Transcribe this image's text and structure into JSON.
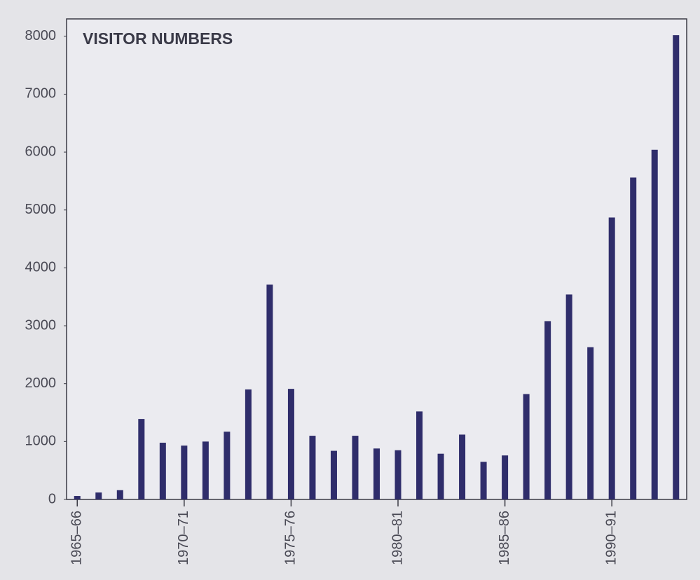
{
  "chart_data": {
    "type": "bar",
    "title": "VISITOR NUMBERS",
    "categories": [
      "1965–66",
      null,
      null,
      null,
      null,
      "1970–71",
      null,
      null,
      null,
      null,
      "1975–76",
      null,
      null,
      null,
      null,
      "1980–81",
      null,
      null,
      null,
      null,
      "1985–86",
      null,
      null,
      null,
      null,
      "1990–91",
      null,
      null,
      null
    ],
    "values": [
      60,
      120,
      160,
      1390,
      980,
      930,
      1000,
      1170,
      1900,
      3710,
      1910,
      1100,
      840,
      1100,
      880,
      850,
      1520,
      790,
      1120,
      650,
      760,
      1820,
      3080,
      3540,
      2630,
      4870,
      5560,
      6040,
      8020
    ],
    "color": "#2f2d6b",
    "ylim": [
      0,
      8300
    ],
    "yticks": [
      0,
      1000,
      2000,
      3000,
      4000,
      5000,
      6000,
      7000,
      8000
    ],
    "grid": false
  }
}
